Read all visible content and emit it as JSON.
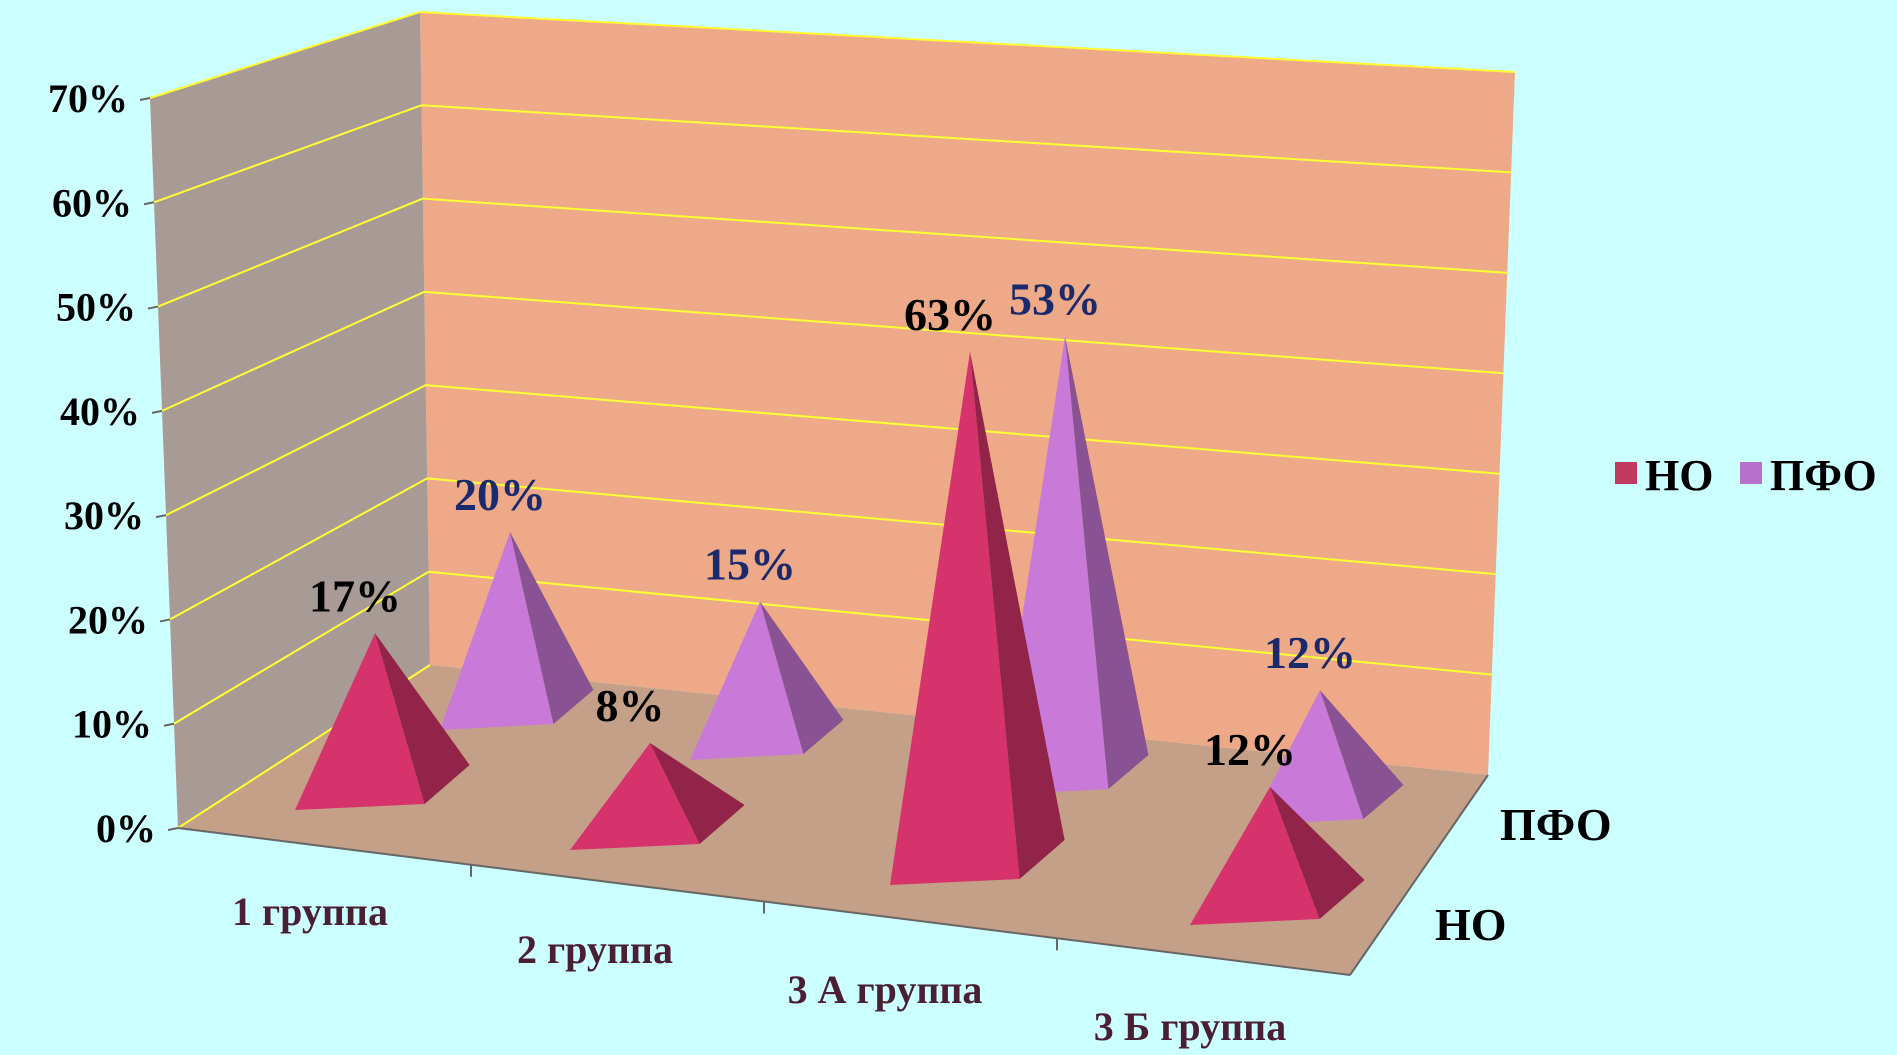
{
  "chart_data": {
    "type": "bar",
    "style": "3d-pyramid",
    "categories": [
      "1 группа",
      "2 группа",
      "3 А группа",
      "3 Б группа"
    ],
    "series": [
      {
        "name": "НО",
        "values": [
          17,
          8,
          63,
          12
        ],
        "labels": [
          "17%",
          "8%",
          "63%",
          "12%"
        ],
        "color": "#d6336c",
        "label_color": "#000000"
      },
      {
        "name": "ПФО",
        "values": [
          20,
          15,
          53,
          12
        ],
        "labels": [
          "20%",
          "15%",
          "53%",
          "12%"
        ],
        "color": "#c97ad8",
        "label_color": "#1a2a6c"
      }
    ],
    "depth_labels": [
      "НО",
      "ПФО"
    ],
    "y_ticks": [
      "0%",
      "10%",
      "20%",
      "30%",
      "40%",
      "50%",
      "60%",
      "70%"
    ],
    "ylim": [
      0,
      70
    ],
    "grid": true,
    "legend": "right",
    "colors": {
      "background": "#ccffff",
      "back_wall": "#eeaa88",
      "side_wall": "#a89a94",
      "floor": "#c4a088",
      "grid": "#ffff33"
    }
  }
}
